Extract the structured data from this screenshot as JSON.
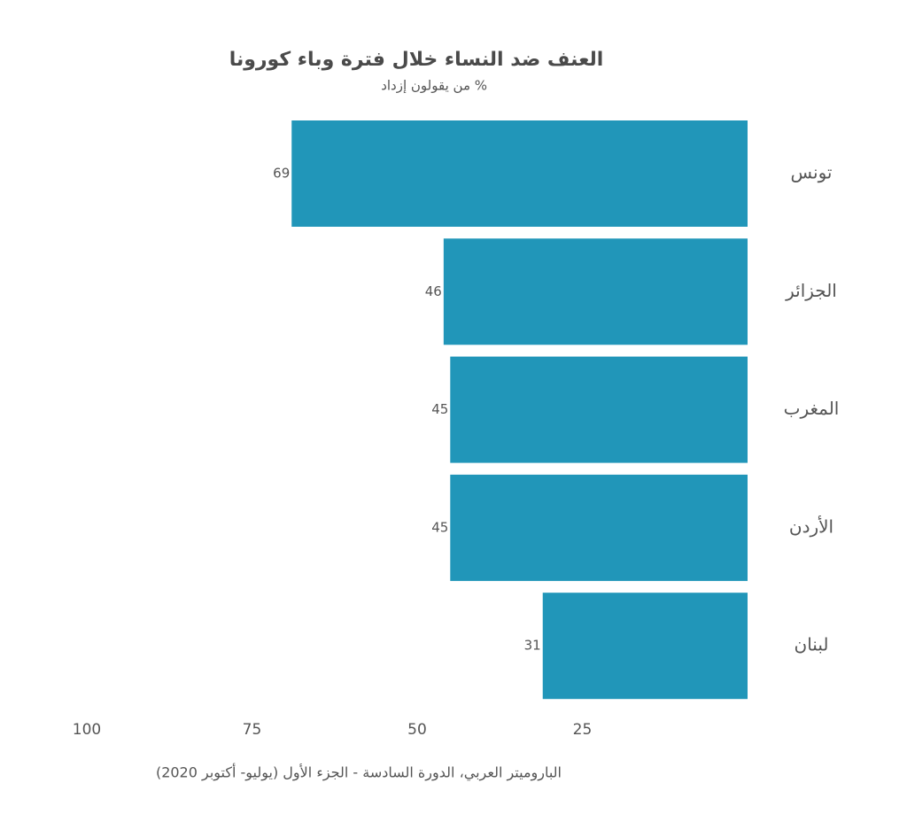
{
  "chart_data": {
    "type": "hbar",
    "title": "العنف ضد النساء خلال فترة وباء كورونا",
    "subtitle": "% من يقولون إزداد",
    "caption": "الباروميتر العربي، الدورة السادسة - الجزء الأول (يوليو- أكتوبر 2020)",
    "categories": [
      "تونس",
      "الجزائر",
      "المغرب",
      "الأردن",
      "لبنان"
    ],
    "values": [
      69,
      46,
      45,
      45,
      31
    ],
    "color": "#2196b9",
    "xlim": [
      0,
      100
    ],
    "xticks": [
      25,
      50,
      75,
      100
    ],
    "x_reversed": true
  }
}
